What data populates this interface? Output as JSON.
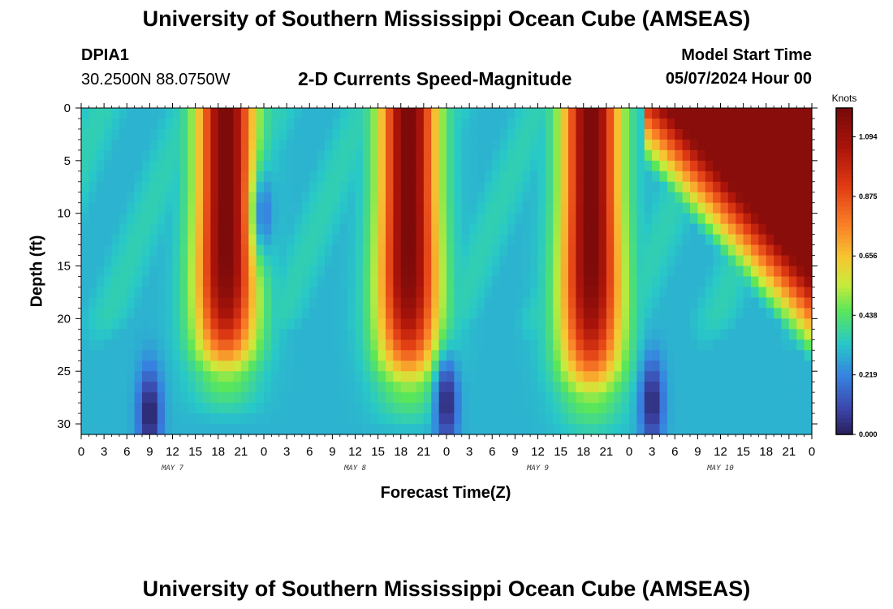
{
  "header": {
    "title": "University of Southern Mississippi Ocean Cube (AMSEAS)",
    "station_id": "DPIA1",
    "coordinates": "30.2500N  88.0750W",
    "subtitle": "2-D Currents Speed-Magnitude",
    "model_start_label": "Model Start Time",
    "model_start_value": "05/07/2024 Hour 00"
  },
  "footer": {
    "title": "University of Southern Mississippi Ocean Cube (AMSEAS)"
  },
  "chart_data": {
    "type": "heatmap",
    "title": "2-D Currents Speed-Magnitude",
    "xlabel": "Forecast Time(Z)",
    "ylabel": "Depth (ft)",
    "x_range_hours": [
      0,
      96
    ],
    "ylim": [
      0,
      31
    ],
    "y_inverted": true,
    "x_tick_labels": [
      "0",
      "3",
      "6",
      "9",
      "12",
      "15",
      "18",
      "21",
      "0",
      "3",
      "6",
      "9",
      "12",
      "15",
      "18",
      "21",
      "0",
      "3",
      "6",
      "9",
      "12",
      "15",
      "18",
      "21",
      "0",
      "3",
      "6",
      "9",
      "12",
      "15",
      "18",
      "21",
      "0"
    ],
    "y_ticks": [
      0,
      5,
      10,
      15,
      20,
      25,
      30
    ],
    "date_labels": [
      {
        "label": "MAY 7",
        "hour": 12
      },
      {
        "label": "MAY 8",
        "hour": 36
      },
      {
        "label": "MAY 9",
        "hour": 60
      },
      {
        "label": "MAY 10",
        "hour": 84
      }
    ],
    "colorbar": {
      "unit": "Knots",
      "min": 0.0,
      "max": 1.2,
      "tick_values": [
        0.0,
        0.219,
        0.438,
        0.656,
        0.875,
        1.094
      ],
      "tick_labels": [
        "0.000",
        "0.219",
        "0.438",
        "0.656",
        "0.875",
        "1.094"
      ]
    },
    "speed_peaks": [
      {
        "hour": 19.0,
        "peak_knots": 1.2,
        "bottom_depth_ft": 25
      },
      {
        "hour": 43.0,
        "peak_knots": 1.2,
        "bottom_depth_ft": 26
      },
      {
        "hour": 67.0,
        "peak_knots": 1.2,
        "bottom_depth_ft": 27
      },
      {
        "hour": 92.0,
        "peak_knots": 1.15,
        "bottom_depth_ft": 24
      }
    ],
    "speed_minima": [
      {
        "hour": 9,
        "depth_ft": 29,
        "knots": 0.0
      },
      {
        "hour": 24,
        "depth_ft": 10,
        "knots": 0.2
      },
      {
        "hour": 48,
        "depth_ft": 28,
        "knots": 0.02
      },
      {
        "hour": 75,
        "depth_ft": 28,
        "knots": 0.02
      }
    ]
  }
}
